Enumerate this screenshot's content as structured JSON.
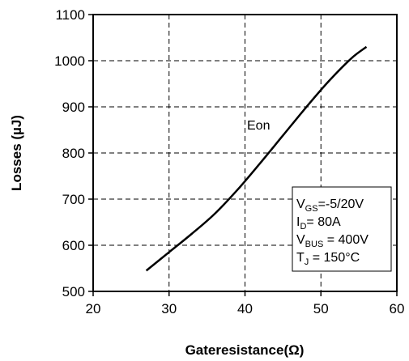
{
  "chart_data": {
    "type": "line",
    "xlabel": "Gateresistance(Ω)",
    "ylabel": "Losses  (µJ)",
    "xlim": [
      20,
      60
    ],
    "ylim": [
      500,
      1100
    ],
    "x_ticks": [
      20,
      30,
      40,
      50,
      60
    ],
    "y_ticks": [
      500,
      600,
      700,
      800,
      900,
      1000,
      1100
    ],
    "grid": true,
    "grid_style": "dashed",
    "series": [
      {
        "name": "Eon",
        "x": [
          27,
          30,
          33,
          36,
          39,
          42,
          45,
          48,
          51,
          54,
          56
        ],
        "y": [
          545,
          585,
          625,
          668,
          720,
          778,
          838,
          898,
          955,
          1005,
          1030
        ],
        "color": "#000000"
      }
    ],
    "annotations": {
      "series_label": "Eon",
      "conditions": [
        {
          "main": "V",
          "sub": "GS",
          "rest": "=-5/20V"
        },
        {
          "main": "I",
          "sub": "D",
          "rest": "= 80A"
        },
        {
          "main": "V",
          "sub": "BUS",
          "rest": " = 400V"
        },
        {
          "main": "T",
          "sub": "J",
          "rest": " = 150°C"
        }
      ]
    }
  }
}
